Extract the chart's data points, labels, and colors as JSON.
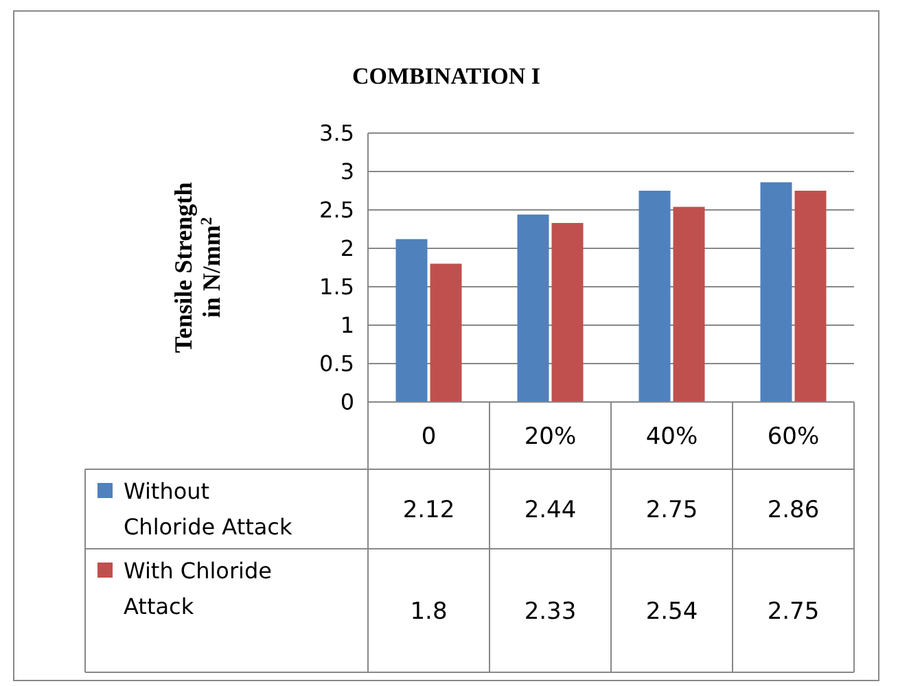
{
  "chart_data": {
    "type": "bar",
    "title": "COMBINATION I",
    "ylabel": "Tensile Strength in N/mm$^{2}$",
    "categories": [
      "0",
      "20%",
      "40%",
      "60%"
    ],
    "series": [
      {
        "name": "Without Chloride Attack",
        "color": "#4f81bd",
        "values": [
          2.12,
          2.44,
          2.75,
          2.86
        ]
      },
      {
        "name": "With Chloride Attack",
        "color": "#c0504d",
        "values": [
          1.8,
          2.33,
          2.54,
          2.75
        ]
      }
    ],
    "ylim": [
      0,
      3.5
    ],
    "yticks": [
      0,
      0.5,
      1,
      1.5,
      2,
      2.5,
      3,
      3.5
    ],
    "grid": "y",
    "data_labels": true,
    "legend": "bottom left"
  }
}
